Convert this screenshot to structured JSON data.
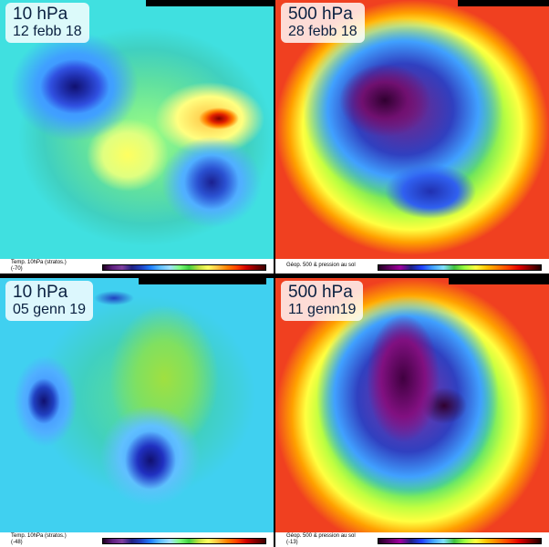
{
  "panels": [
    {
      "level": "10 hPa",
      "date": "12 febb 18",
      "legend": "Temp. 10hPa (stratos.)",
      "legend_sub": "(-70)"
    },
    {
      "level": "500 hPa",
      "date": "28 febb 18",
      "legend": "Géop. 500 & pression au sol",
      "legend_sub": ""
    },
    {
      "level": "10 hPa",
      "date": "05 genn 19",
      "legend": "Temp. 10hPa (stratos.)",
      "legend_sub": "(-48)"
    },
    {
      "level": "500 hPa",
      "date": "11 genn19",
      "legend": "Géop. 500 & pression au sol",
      "legend_sub": "(-13)"
    }
  ]
}
